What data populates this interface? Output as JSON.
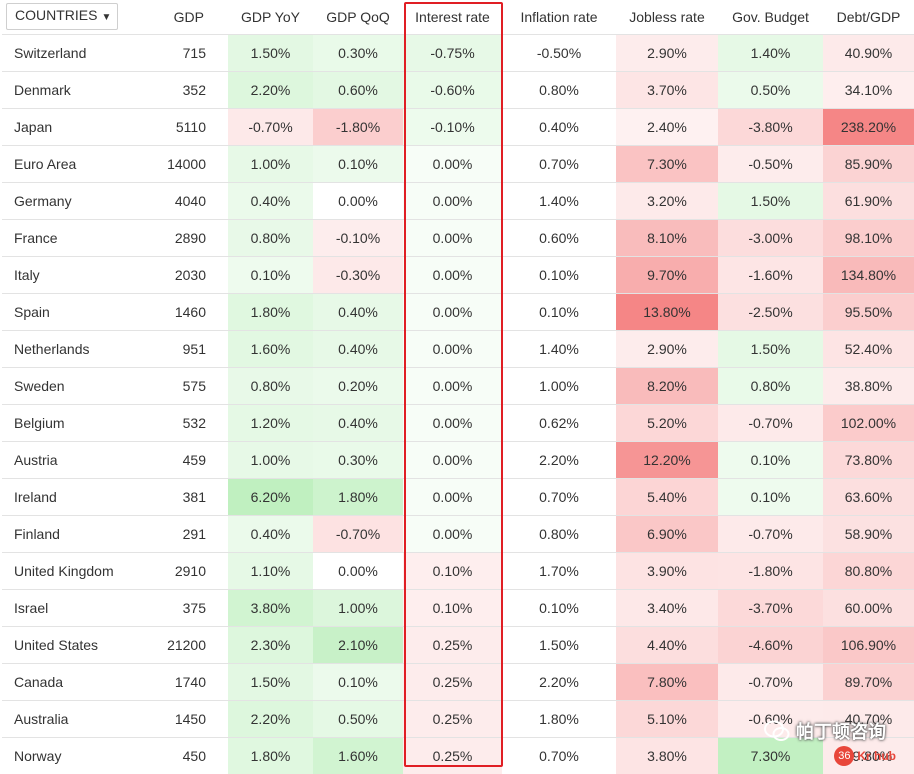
{
  "header": {
    "countries_label": "COUNTRIES",
    "columns": [
      "GDP",
      "GDP YoY",
      "GDP QoQ",
      "Interest rate",
      "Inflation rate",
      "Jobless rate",
      "Gov. Budget",
      "Debt/GDP"
    ]
  },
  "rows": [
    {
      "country": "Switzerland",
      "gdp": "715",
      "yoy": "1.50%",
      "qoq": "0.30%",
      "rate": "-0.75%",
      "inflation": "-0.50%",
      "jobless": "2.90%",
      "budget": "1.40%",
      "debt": "40.90%"
    },
    {
      "country": "Denmark",
      "gdp": "352",
      "yoy": "2.20%",
      "qoq": "0.60%",
      "rate": "-0.60%",
      "inflation": "0.80%",
      "jobless": "3.70%",
      "budget": "0.50%",
      "debt": "34.10%"
    },
    {
      "country": "Japan",
      "gdp": "5110",
      "yoy": "-0.70%",
      "qoq": "-1.80%",
      "rate": "-0.10%",
      "inflation": "0.40%",
      "jobless": "2.40%",
      "budget": "-3.80%",
      "debt": "238.20%"
    },
    {
      "country": "Euro Area",
      "gdp": "14000",
      "yoy": "1.00%",
      "qoq": "0.10%",
      "rate": "0.00%",
      "inflation": "0.70%",
      "jobless": "7.30%",
      "budget": "-0.50%",
      "debt": "85.90%"
    },
    {
      "country": "Germany",
      "gdp": "4040",
      "yoy": "0.40%",
      "qoq": "0.00%",
      "rate": "0.00%",
      "inflation": "1.40%",
      "jobless": "3.20%",
      "budget": "1.50%",
      "debt": "61.90%"
    },
    {
      "country": "France",
      "gdp": "2890",
      "yoy": "0.80%",
      "qoq": "-0.10%",
      "rate": "0.00%",
      "inflation": "0.60%",
      "jobless": "8.10%",
      "budget": "-3.00%",
      "debt": "98.10%"
    },
    {
      "country": "Italy",
      "gdp": "2030",
      "yoy": "0.10%",
      "qoq": "-0.30%",
      "rate": "0.00%",
      "inflation": "0.10%",
      "jobless": "9.70%",
      "budget": "-1.60%",
      "debt": "134.80%"
    },
    {
      "country": "Spain",
      "gdp": "1460",
      "yoy": "1.80%",
      "qoq": "0.40%",
      "rate": "0.00%",
      "inflation": "0.10%",
      "jobless": "13.80%",
      "budget": "-2.50%",
      "debt": "95.50%"
    },
    {
      "country": "Netherlands",
      "gdp": "951",
      "yoy": "1.60%",
      "qoq": "0.40%",
      "rate": "0.00%",
      "inflation": "1.40%",
      "jobless": "2.90%",
      "budget": "1.50%",
      "debt": "52.40%"
    },
    {
      "country": "Sweden",
      "gdp": "575",
      "yoy": "0.80%",
      "qoq": "0.20%",
      "rate": "0.00%",
      "inflation": "1.00%",
      "jobless": "8.20%",
      "budget": "0.80%",
      "debt": "38.80%"
    },
    {
      "country": "Belgium",
      "gdp": "532",
      "yoy": "1.20%",
      "qoq": "0.40%",
      "rate": "0.00%",
      "inflation": "0.62%",
      "jobless": "5.20%",
      "budget": "-0.70%",
      "debt": "102.00%"
    },
    {
      "country": "Austria",
      "gdp": "459",
      "yoy": "1.00%",
      "qoq": "0.30%",
      "rate": "0.00%",
      "inflation": "2.20%",
      "jobless": "12.20%",
      "budget": "0.10%",
      "debt": "73.80%"
    },
    {
      "country": "Ireland",
      "gdp": "381",
      "yoy": "6.20%",
      "qoq": "1.80%",
      "rate": "0.00%",
      "inflation": "0.70%",
      "jobless": "5.40%",
      "budget": "0.10%",
      "debt": "63.60%"
    },
    {
      "country": "Finland",
      "gdp": "291",
      "yoy": "0.40%",
      "qoq": "-0.70%",
      "rate": "0.00%",
      "inflation": "0.80%",
      "jobless": "6.90%",
      "budget": "-0.70%",
      "debt": "58.90%"
    },
    {
      "country": "United Kingdom",
      "gdp": "2910",
      "yoy": "1.10%",
      "qoq": "0.00%",
      "rate": "0.10%",
      "inflation": "1.70%",
      "jobless": "3.90%",
      "budget": "-1.80%",
      "debt": "80.80%"
    },
    {
      "country": "Israel",
      "gdp": "375",
      "yoy": "3.80%",
      "qoq": "1.00%",
      "rate": "0.10%",
      "inflation": "0.10%",
      "jobless": "3.40%",
      "budget": "-3.70%",
      "debt": "60.00%"
    },
    {
      "country": "United States",
      "gdp": "21200",
      "yoy": "2.30%",
      "qoq": "2.10%",
      "rate": "0.25%",
      "inflation": "1.50%",
      "jobless": "4.40%",
      "budget": "-4.60%",
      "debt": "106.90%"
    },
    {
      "country": "Canada",
      "gdp": "1740",
      "yoy": "1.50%",
      "qoq": "0.10%",
      "rate": "0.25%",
      "inflation": "2.20%",
      "jobless": "7.80%",
      "budget": "-0.70%",
      "debt": "89.70%"
    },
    {
      "country": "Australia",
      "gdp": "1450",
      "yoy": "2.20%",
      "qoq": "0.50%",
      "rate": "0.25%",
      "inflation": "1.80%",
      "jobless": "5.10%",
      "budget": "-0.60%",
      "debt": "40.70%"
    },
    {
      "country": "Norway",
      "gdp": "450",
      "yoy": "1.80%",
      "qoq": "1.60%",
      "rate": "0.25%",
      "inflation": "0.70%",
      "jobless": "3.80%",
      "budget": "7.30%",
      "debt": "39.80%"
    }
  ],
  "heat_colors": {
    "positive": "#2ecc2e",
    "negative": "#ee3333",
    "highlight_border": "#e01e24"
  },
  "watermark": {
    "text": "帕丁顿咨询",
    "icon": "wechat-icon"
  },
  "logo": {
    "mark": "36",
    "text": "Kr hub"
  }
}
